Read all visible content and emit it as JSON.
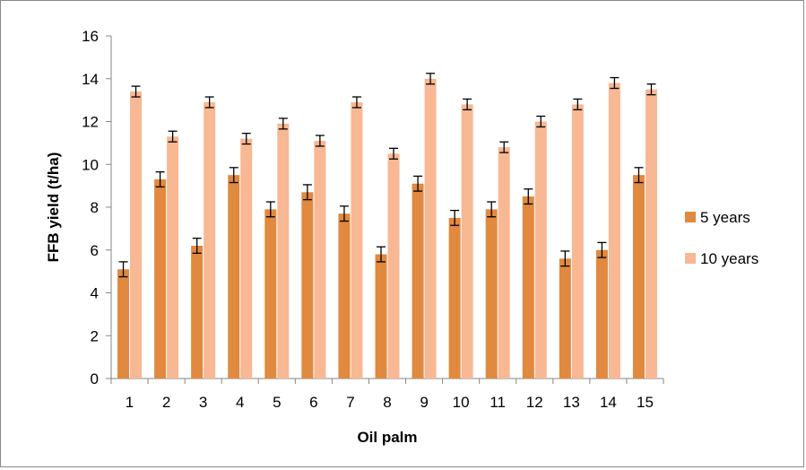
{
  "chart_data": {
    "type": "bar",
    "title": "",
    "xlabel": "Oil palm",
    "ylabel": "FFB yield (t/ha)",
    "ylim": [
      0,
      16
    ],
    "yticks": [
      0,
      2,
      4,
      6,
      8,
      10,
      12,
      14,
      16
    ],
    "categories": [
      "1",
      "2",
      "3",
      "4",
      "5",
      "6",
      "7",
      "8",
      "9",
      "10",
      "11",
      "12",
      "13",
      "14",
      "15"
    ],
    "series": [
      {
        "name": "5 years",
        "color": "#E0893F",
        "values": [
          5.1,
          9.3,
          6.2,
          9.5,
          7.9,
          8.7,
          7.7,
          5.8,
          9.1,
          7.5,
          7.9,
          8.5,
          5.6,
          6.0,
          9.5
        ],
        "errors": [
          0.35,
          0.35,
          0.35,
          0.35,
          0.35,
          0.35,
          0.35,
          0.35,
          0.35,
          0.35,
          0.35,
          0.35,
          0.35,
          0.35,
          0.35
        ]
      },
      {
        "name": "10 years",
        "color": "#F8B893",
        "values": [
          13.4,
          11.3,
          12.9,
          11.2,
          11.9,
          11.1,
          12.9,
          10.5,
          14.0,
          12.8,
          10.8,
          12.0,
          12.8,
          13.8,
          13.5
        ],
        "errors": [
          0.25,
          0.25,
          0.25,
          0.25,
          0.25,
          0.25,
          0.25,
          0.25,
          0.25,
          0.25,
          0.25,
          0.25,
          0.25,
          0.25,
          0.25
        ]
      }
    ],
    "grid": false,
    "legend_position": "right"
  }
}
